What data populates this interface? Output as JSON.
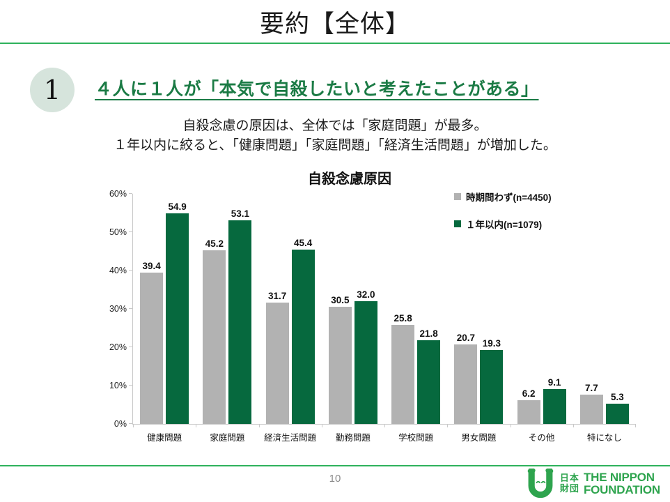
{
  "slide": {
    "title": "要約【全体】"
  },
  "section": {
    "number": "1",
    "heading": "４人に１人が「本気で自殺したいと考えたことがある」",
    "subtext_line1": "自殺念慮の原因は、全体では「家庭問題」が最多。",
    "subtext_line2": "１年以内に絞ると、「健康問題」「家庭問題」「経済生活問題」が増加した。"
  },
  "chart_data": {
    "type": "bar",
    "title": "自殺念慮原因",
    "categories": [
      "健康問題",
      "家庭問題",
      "経済生活問題",
      "勤務問題",
      "学校問題",
      "男女問題",
      "その他",
      "特になし"
    ],
    "series": [
      {
        "name": "時期問わず(n=4450)",
        "color": "#b2b2b2",
        "values": [
          39.4,
          45.2,
          31.7,
          30.5,
          25.8,
          20.7,
          6.2,
          7.7
        ]
      },
      {
        "name": "１年以内(n=1079)",
        "color": "#06693e",
        "values": [
          54.9,
          53.1,
          45.4,
          32.0,
          21.8,
          19.3,
          9.1,
          5.3
        ]
      }
    ],
    "y_ticks": [
      "0%",
      "10%",
      "20%",
      "30%",
      "40%",
      "50%",
      "60%"
    ],
    "ylim": [
      0,
      60
    ],
    "grid": false,
    "legend_position": "top-right",
    "value_label_decimals": 1
  },
  "footer": {
    "page_number": "10",
    "logo": {
      "jp_top": "日本",
      "jp_bottom": "財団",
      "en_top": "THE NIPPON",
      "en_bottom": "FOUNDATION"
    }
  },
  "colors": {
    "accent_line": "#2eb25c",
    "heading_green": "#1b7b45",
    "bar_gray": "#b2b2b2",
    "bar_green": "#06693e",
    "circle_bg": "#d6e4dc",
    "logo_green": "#2ea44e",
    "axis_gray": "#c9c9c9",
    "page_number_gray": "#8a8a8a"
  }
}
